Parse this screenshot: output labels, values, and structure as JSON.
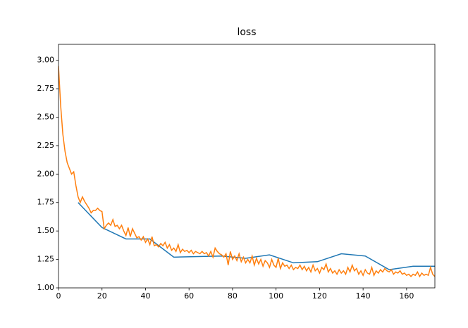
{
  "chart_data": {
    "type": "line",
    "title": "loss",
    "xlim": [
      0,
      173
    ],
    "ylim": [
      1.0,
      3.14
    ],
    "xticks": [
      0,
      20,
      40,
      60,
      80,
      100,
      120,
      140,
      160
    ],
    "yticks": [
      {
        "value": 1.0,
        "label": "1.00"
      },
      {
        "value": 1.25,
        "label": "1.25"
      },
      {
        "value": 1.5,
        "label": "1.50"
      },
      {
        "value": 1.75,
        "label": "1.75"
      },
      {
        "value": 2.0,
        "label": "2.00"
      },
      {
        "value": 2.25,
        "label": "2.25"
      },
      {
        "value": 2.5,
        "label": "2.50"
      },
      {
        "value": 2.75,
        "label": "2.75"
      },
      {
        "value": 3.0,
        "label": "3.00"
      }
    ],
    "series": [
      {
        "color": "#1f77b4",
        "x": [
          9,
          20,
          31,
          42,
          53,
          75,
          86,
          97,
          108,
          119,
          130,
          141,
          152,
          163,
          173
        ],
        "values": [
          1.75,
          1.53,
          1.43,
          1.43,
          1.27,
          1.28,
          1.26,
          1.29,
          1.22,
          1.23,
          1.3,
          1.28,
          1.16,
          1.19,
          1.19
        ]
      },
      {
        "color": "#ff7f0e",
        "x": [
          0,
          1,
          2,
          3,
          4,
          5,
          6,
          7,
          8,
          9,
          10,
          11,
          12,
          13,
          14,
          15,
          16,
          17,
          18,
          19,
          20,
          21,
          22,
          23,
          24,
          25,
          26,
          27,
          28,
          29,
          30,
          31,
          32,
          33,
          34,
          35,
          36,
          37,
          38,
          39,
          40,
          41,
          42,
          43,
          44,
          45,
          46,
          47,
          48,
          49,
          50,
          51,
          52,
          53,
          54,
          55,
          56,
          57,
          58,
          59,
          60,
          61,
          62,
          63,
          64,
          65,
          66,
          67,
          68,
          69,
          70,
          71,
          72,
          73,
          74,
          75,
          76,
          77,
          78,
          79,
          80,
          81,
          82,
          83,
          84,
          85,
          86,
          87,
          88,
          89,
          90,
          91,
          92,
          93,
          94,
          95,
          96,
          97,
          98,
          99,
          100,
          101,
          102,
          103,
          104,
          105,
          106,
          107,
          108,
          109,
          110,
          111,
          112,
          113,
          114,
          115,
          116,
          117,
          118,
          119,
          120,
          121,
          122,
          123,
          124,
          125,
          126,
          127,
          128,
          129,
          130,
          131,
          132,
          133,
          134,
          135,
          136,
          137,
          138,
          139,
          140,
          141,
          142,
          143,
          144,
          145,
          146,
          147,
          148,
          149,
          150,
          151,
          152,
          153,
          154,
          155,
          156,
          157,
          158,
          159,
          160,
          161,
          162,
          163,
          164,
          165,
          166,
          167,
          168,
          169,
          170,
          171,
          172,
          173
        ],
        "values": [
          2.95,
          2.6,
          2.35,
          2.2,
          2.1,
          2.05,
          2.0,
          2.02,
          1.9,
          1.8,
          1.75,
          1.8,
          1.76,
          1.73,
          1.7,
          1.66,
          1.68,
          1.68,
          1.7,
          1.68,
          1.67,
          1.52,
          1.55,
          1.57,
          1.55,
          1.6,
          1.54,
          1.55,
          1.52,
          1.55,
          1.5,
          1.46,
          1.53,
          1.45,
          1.52,
          1.48,
          1.44,
          1.45,
          1.42,
          1.45,
          1.4,
          1.43,
          1.38,
          1.45,
          1.37,
          1.38,
          1.36,
          1.39,
          1.37,
          1.4,
          1.35,
          1.38,
          1.33,
          1.35,
          1.32,
          1.38,
          1.31,
          1.34,
          1.32,
          1.33,
          1.31,
          1.33,
          1.3,
          1.32,
          1.31,
          1.3,
          1.32,
          1.3,
          1.31,
          1.28,
          1.32,
          1.27,
          1.35,
          1.32,
          1.3,
          1.29,
          1.27,
          1.3,
          1.2,
          1.32,
          1.25,
          1.28,
          1.24,
          1.3,
          1.23,
          1.27,
          1.22,
          1.25,
          1.22,
          1.28,
          1.2,
          1.26,
          1.21,
          1.25,
          1.19,
          1.24,
          1.22,
          1.18,
          1.25,
          1.2,
          1.18,
          1.26,
          1.17,
          1.22,
          1.19,
          1.2,
          1.17,
          1.2,
          1.16,
          1.18,
          1.17,
          1.2,
          1.16,
          1.19,
          1.15,
          1.18,
          1.14,
          1.2,
          1.15,
          1.17,
          1.13,
          1.18,
          1.16,
          1.21,
          1.14,
          1.17,
          1.13,
          1.15,
          1.12,
          1.16,
          1.13,
          1.15,
          1.12,
          1.18,
          1.14,
          1.2,
          1.15,
          1.17,
          1.12,
          1.15,
          1.11,
          1.16,
          1.13,
          1.12,
          1.18,
          1.11,
          1.15,
          1.13,
          1.16,
          1.14,
          1.17,
          1.15,
          1.14,
          1.16,
          1.12,
          1.14,
          1.13,
          1.15,
          1.12,
          1.13,
          1.11,
          1.12,
          1.1,
          1.12,
          1.11,
          1.14,
          1.1,
          1.13,
          1.11,
          1.12,
          1.11,
          1.18,
          1.12,
          1.1
        ]
      }
    ]
  }
}
